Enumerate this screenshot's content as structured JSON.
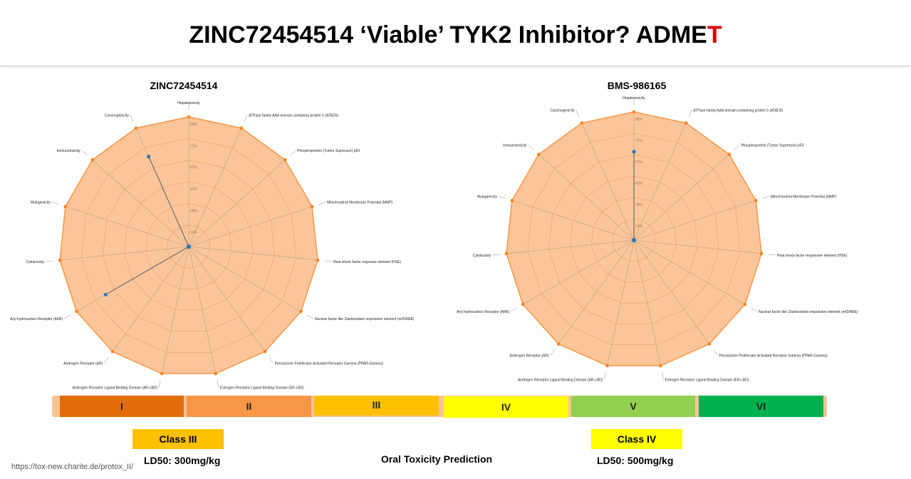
{
  "slide": {
    "title_main": "ZINC72454514 ‘Viable’ TYK2 Inhibitor? ADME",
    "title_accent": "T",
    "title_accent_color": "#e00000",
    "footer_center": "Oral Toxicity Prediction",
    "url": "https://tox-new.charite.de/protox_II/"
  },
  "toxicity_classes": {
    "segments": [
      {
        "label": "I",
        "color": "#e36c0a"
      },
      {
        "label": "II",
        "color": "#f79646"
      },
      {
        "label": "III",
        "color": "#ffc000"
      },
      {
        "label": "IV",
        "color": "#ffff00"
      },
      {
        "label": "V",
        "color": "#92d050"
      },
      {
        "label": "VI",
        "color": "#00b050"
      }
    ]
  },
  "predictions": [
    {
      "class_label": "Class III",
      "color": "#ffc000",
      "ld50": "LD50: 300mg/kg"
    },
    {
      "class_label": "Class IV",
      "color": "#ffff00",
      "ld50": "LD50: 500mg/kg"
    }
  ],
  "chart_data": [
    {
      "type": "radar",
      "title": "ZINC72454514",
      "fill_color": "#f79646",
      "point_color": "#2e75b6",
      "tick_labels": [
        "14%",
        "28%",
        "42%",
        "57%",
        "71%",
        "85%"
      ],
      "axes": [
        "Hepatotoxicity",
        "ATPase family AAA domain-containing protein 5 (ATAD5)",
        "Phosphoprotein (Tumor Supressor) p53",
        "Mitochondrial Membrane Potential (MMP)",
        "Heat shock factor response element (HSE)",
        "Nuclear factor like 2/antioxidant responsive element (nrf2/ARE)",
        "Peroxisome Proliferator Activated Receptor Gamma (PPAR-Gamma)",
        "Estrogen Receptor Ligand Binding Domain (ER-LBD)",
        "Androgen Receptor Ligand Binding Domain (AR-LBD)",
        "Androgen Receptor (AR)",
        "Aryl hydrocarbon Receptor (AhR)",
        "Cytotoxicity",
        "Mutagenicity",
        "Immunotoxicity",
        "Carcinogenicity"
      ],
      "active_values": [
        0,
        0,
        0,
        0,
        0,
        0,
        0,
        0,
        0,
        0,
        0.74,
        0,
        0,
        0,
        0.76
      ]
    },
    {
      "type": "radar",
      "title": "BMS-986165",
      "fill_color": "#f79646",
      "point_color": "#2e75b6",
      "tick_labels": [
        "14%",
        "28%",
        "42%",
        "57%",
        "71%",
        "85%"
      ],
      "axes": [
        "Hepatotoxicity",
        "ATPase family AAA domain-containing protein 5 (ATAD5)",
        "Phosphoprotein (Tumor Supressor) p53",
        "Mitochondrial Membrane Potential (MMP)",
        "Heat shock factor responsive element (HSE)",
        "Nuclear factor like 2/antioxidant responsive element (nrf2/ARE)",
        "Peroxisome Proliferator Activated Receptor Gamma (PPAR-Gamma)",
        "Estrogen Receptor Ligand Binding Domain (ER-LBD)",
        "Androgen Receptor Ligand Binding Domain (AR-LBD)",
        "Androgen Receptor (AR)",
        "Aryl hydrocarbon Receptor (AhR)",
        "Cytotoxicity",
        "Mutagenicity",
        "Immunotoxicity",
        "Carcinogenicity"
      ],
      "active_values": [
        0.69,
        0,
        0,
        0,
        0,
        0,
        0,
        0,
        0,
        0,
        0,
        0,
        0,
        0,
        0
      ]
    }
  ]
}
